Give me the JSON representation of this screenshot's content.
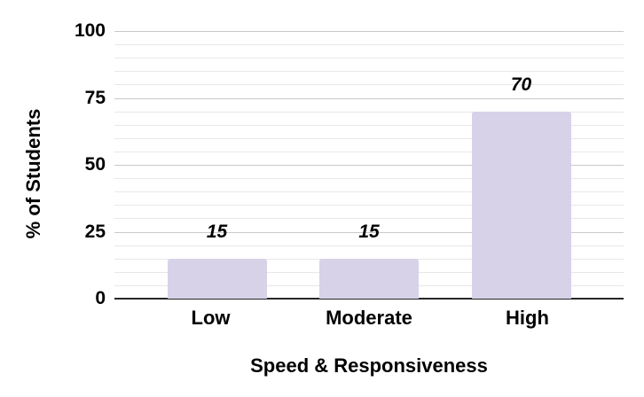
{
  "chart_data": {
    "type": "bar",
    "categories": [
      "Low",
      "Moderate",
      "High"
    ],
    "values": [
      15,
      15,
      70
    ],
    "data_labels": [
      "15",
      "15",
      "70"
    ],
    "title": "",
    "xlabel": "Speed & Responsiveness",
    "ylabel": "% of Students",
    "ylim": [
      0,
      100
    ],
    "y_major_ticks": [
      0,
      25,
      50,
      75,
      100
    ],
    "y_minor_step": 5,
    "legend_position": "none",
    "grid_on": true,
    "colors": {
      "bar_fill": "#d8d2e8",
      "major_gridline": "#c9c9c9",
      "minor_gridline": "#e8e8e8",
      "axis_line": "#262626",
      "text": "#000000",
      "background": "#ffffff"
    }
  }
}
